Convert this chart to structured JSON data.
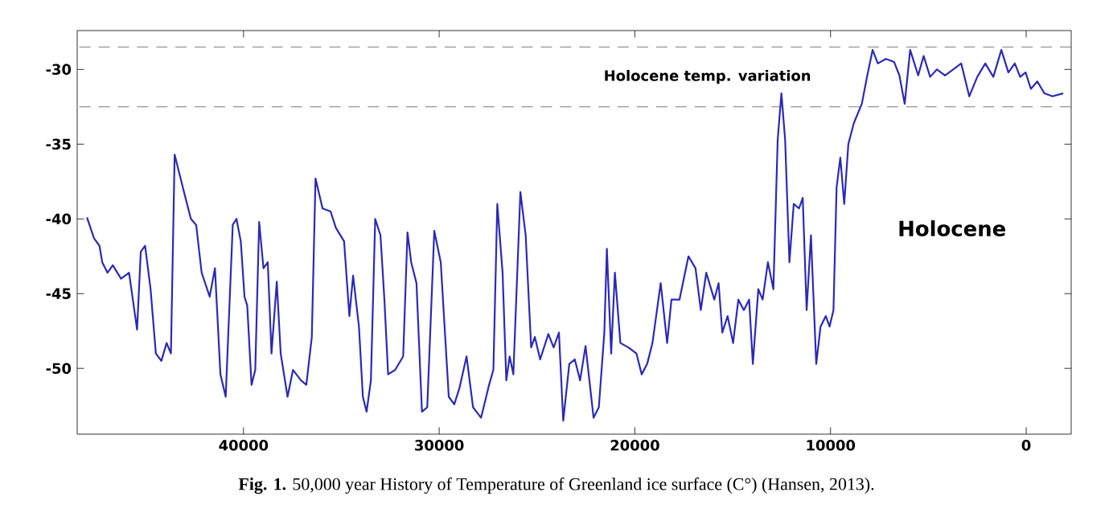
{
  "chart_data": {
    "type": "line",
    "x": [
      48000,
      47640,
      47360,
      47220,
      46950,
      46680,
      46260,
      45850,
      45440,
      45250,
      45030,
      44750,
      44480,
      44200,
      43930,
      43710,
      43520,
      43100,
      42690,
      42420,
      42140,
      41730,
      41460,
      41180,
      40910,
      40550,
      40360,
      40140,
      39950,
      39810,
      39590,
      39400,
      39200,
      38980,
      38760,
      38570,
      38300,
      38100,
      37750,
      37470,
      37060,
      36790,
      36510,
      36320,
      35960,
      35550,
      35280,
      34860,
      34590,
      34400,
      34100,
      33900,
      33710,
      33490,
      33270,
      33000,
      32800,
      32610,
      32250,
      31840,
      31620,
      31430,
      31160,
      30880,
      30610,
      30250,
      29920,
      29510,
      29230,
      28960,
      28600,
      28270,
      27860,
      27450,
      27230,
      27030,
      26760,
      26570,
      26400,
      26210,
      25850,
      25580,
      25300,
      25110,
      24840,
      24420,
      24150,
      23880,
      23660,
      23350,
      23070,
      22800,
      22520,
      22110,
      21840,
      21560,
      21430,
      21210,
      21020,
      20740,
      20330,
      19920,
      19650,
      19370,
      19100,
      18680,
      18350,
      18130,
      17720,
      17260,
      16900,
      16630,
      16350,
      15940,
      15720,
      15530,
      15260,
      14980,
      14710,
      14430,
      14160,
      13970,
      13690,
      13470,
      13200,
      12920,
      12700,
      12510,
      12320,
      12100,
      11880,
      11610,
      11420,
      11220,
      11000,
      10730,
      10510,
      10240,
      10050,
      9850,
      9690,
      9500,
      9300,
      9090,
      8810,
      8400,
      8120,
      7850,
      7580,
      7170,
      6750,
      6480,
      6210,
      5930,
      5520,
      5240,
      4910,
      4560,
      4150,
      3730,
      3320,
      2910,
      2500,
      2090,
      1680,
      1270,
      910,
      580,
      310,
      30,
      -240,
      -570,
      -930,
      -1340,
      -1890
    ],
    "series": [
      {
        "color": "#2a2ab8",
        "values": [
          -39.9,
          -41.3,
          -41.8,
          -42.9,
          -43.6,
          -43.1,
          -44.0,
          -43.6,
          -47.4,
          -42.2,
          -41.8,
          -44.7,
          -49.0,
          -49.5,
          -48.3,
          -49.0,
          -35.7,
          -37.9,
          -40.0,
          -40.4,
          -43.6,
          -45.2,
          -43.3,
          -50.4,
          -51.9,
          -40.4,
          -40.0,
          -41.5,
          -45.2,
          -45.8,
          -51.1,
          -50.1,
          -40.2,
          -43.3,
          -42.9,
          -49.0,
          -44.2,
          -49.0,
          -51.9,
          -50.1,
          -50.8,
          -51.1,
          -47.9,
          -37.3,
          -39.3,
          -39.5,
          -40.6,
          -41.5,
          -46.5,
          -43.8,
          -47.2,
          -51.9,
          -52.9,
          -50.8,
          -40.0,
          -41.1,
          -45.4,
          -50.4,
          -50.1,
          -49.2,
          -40.9,
          -42.9,
          -44.3,
          -52.9,
          -52.6,
          -40.8,
          -42.9,
          -51.9,
          -52.4,
          -51.3,
          -49.2,
          -52.6,
          -53.3,
          -51.1,
          -50.1,
          -39.0,
          -43.6,
          -50.8,
          -49.2,
          -50.4,
          -38.2,
          -41.1,
          -48.6,
          -47.9,
          -49.4,
          -47.7,
          -48.6,
          -47.6,
          -53.5,
          -49.7,
          -49.4,
          -50.8,
          -48.5,
          -53.3,
          -52.6,
          -47.6,
          -42.0,
          -49.0,
          -43.6,
          -48.3,
          -48.6,
          -49.0,
          -50.4,
          -49.7,
          -48.3,
          -44.3,
          -48.3,
          -45.4,
          -45.4,
          -42.5,
          -43.3,
          -46.1,
          -43.6,
          -45.4,
          -44.3,
          -47.6,
          -46.5,
          -48.3,
          -45.4,
          -46.1,
          -45.4,
          -49.7,
          -44.7,
          -45.4,
          -42.9,
          -44.7,
          -34.7,
          -31.6,
          -34.7,
          -42.9,
          -39.0,
          -39.3,
          -38.6,
          -46.1,
          -41.1,
          -49.7,
          -47.2,
          -46.5,
          -47.2,
          -46.1,
          -37.9,
          -35.9,
          -39.0,
          -35.0,
          -33.6,
          -32.3,
          -30.4,
          -28.7,
          -29.6,
          -29.3,
          -29.5,
          -30.4,
          -32.3,
          -28.7,
          -30.4,
          -29.1,
          -30.5,
          -30.0,
          -30.4,
          -30.0,
          -29.6,
          -31.8,
          -30.5,
          -29.6,
          -30.5,
          -28.7,
          -30.2,
          -29.6,
          -30.5,
          -30.2,
          -31.3,
          -30.8,
          -31.6,
          -31.8,
          -31.6
        ]
      }
    ],
    "xlim": [
      48500,
      -2300
    ],
    "ylim": [
      -54.4,
      -27.4
    ],
    "xticks": [
      40000,
      30000,
      20000,
      10000,
      0
    ],
    "yticks": [
      -30,
      -35,
      -40,
      -45,
      -50
    ],
    "ref_lines": [
      {
        "axis": "y",
        "value": -28.5,
        "label": "Holocene temp. variation",
        "color": "#555555",
        "line_style": "dashed"
      },
      {
        "axis": "y",
        "value": -32.5,
        "color": "#555555",
        "line_style": "dashed"
      }
    ],
    "annotations": [
      "Holocene",
      "**Fig. 1.** 50,000 year History of Temperature of Greenland ice surface (C°) (Hansen, 2013)."
    ],
    "grid": false,
    "marker": "none",
    "line_style": "solid"
  }
}
